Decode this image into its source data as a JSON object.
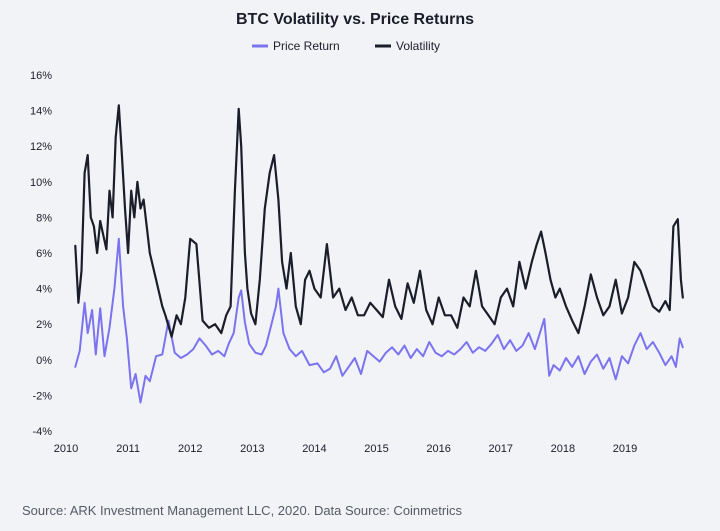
{
  "chart_data": {
    "type": "line",
    "title": "BTC Volatility vs. Price Returns",
    "xlabel": "",
    "ylabel": "",
    "ylim": [
      -4,
      16
    ],
    "xlim": [
      2010,
      2019.95
    ],
    "y_ticks": [
      -4,
      -2,
      0,
      2,
      4,
      6,
      8,
      10,
      12,
      14,
      16
    ],
    "y_tick_labels": [
      "-4%",
      "-2%",
      "0%",
      "2%",
      "4%",
      "6%",
      "8%",
      "10%",
      "12%",
      "14%",
      "16%"
    ],
    "x_ticks": [
      2010,
      2011,
      2012,
      2013,
      2014,
      2015,
      2016,
      2017,
      2018,
      2019
    ],
    "x_tick_labels": [
      "2010",
      "2011",
      "2012",
      "2013",
      "2014",
      "2015",
      "2016",
      "2017",
      "2018",
      "2019"
    ],
    "grid": false,
    "legend_position": "top",
    "source": "Source: ARK Investment Management LLC, 2020. Data Source: Coinmetrics",
    "series": [
      {
        "name": "Price Return",
        "color": "#7b73f0",
        "x": [
          2010.15,
          2010.22,
          2010.3,
          2010.35,
          2010.42,
          2010.48,
          2010.55,
          2010.62,
          2010.7,
          2010.78,
          2010.85,
          2010.92,
          2010.98,
          2011.05,
          2011.12,
          2011.2,
          2011.28,
          2011.35,
          2011.45,
          2011.55,
          2011.65,
          2011.75,
          2011.85,
          2011.95,
          2012.05,
          2012.15,
          2012.25,
          2012.35,
          2012.45,
          2012.55,
          2012.62,
          2012.7,
          2012.78,
          2012.82,
          2012.88,
          2012.95,
          2013.05,
          2013.15,
          2013.22,
          2013.3,
          2013.38,
          2013.42,
          2013.5,
          2013.6,
          2013.7,
          2013.8,
          2013.92,
          2014.05,
          2014.15,
          2014.25,
          2014.35,
          2014.45,
          2014.55,
          2014.65,
          2014.75,
          2014.85,
          2014.95,
          2015.05,
          2015.15,
          2015.25,
          2015.35,
          2015.45,
          2015.55,
          2015.65,
          2015.75,
          2015.85,
          2015.95,
          2016.05,
          2016.15,
          2016.25,
          2016.35,
          2016.45,
          2016.55,
          2016.65,
          2016.75,
          2016.85,
          2016.95,
          2017.05,
          2017.15,
          2017.25,
          2017.35,
          2017.45,
          2017.55,
          2017.62,
          2017.7,
          2017.78,
          2017.85,
          2017.95,
          2018.05,
          2018.15,
          2018.25,
          2018.35,
          2018.45,
          2018.55,
          2018.65,
          2018.75,
          2018.85,
          2018.95,
          2019.05,
          2019.15,
          2019.25,
          2019.35,
          2019.45,
          2019.55,
          2019.65,
          2019.75,
          2019.82,
          2019.88,
          2019.93
        ],
        "values": [
          -0.4,
          0.5,
          3.2,
          1.5,
          2.8,
          0.3,
          2.9,
          0.2,
          1.8,
          4.0,
          6.8,
          3.0,
          1.2,
          -1.6,
          -0.8,
          -2.4,
          -0.9,
          -1.2,
          0.2,
          0.3,
          2.2,
          0.4,
          0.1,
          0.3,
          0.6,
          1.2,
          0.8,
          0.3,
          0.5,
          0.2,
          0.9,
          1.5,
          3.5,
          3.9,
          2.1,
          0.9,
          0.4,
          0.3,
          0.8,
          1.9,
          3.0,
          4.0,
          1.5,
          0.6,
          0.2,
          0.5,
          -0.3,
          -0.2,
          -0.7,
          -0.5,
          0.2,
          -0.9,
          -0.4,
          0.1,
          -0.8,
          0.5,
          0.2,
          -0.1,
          0.4,
          0.7,
          0.3,
          0.8,
          0.1,
          0.6,
          0.2,
          1.0,
          0.4,
          0.2,
          0.5,
          0.3,
          0.6,
          1.0,
          0.4,
          0.7,
          0.5,
          0.9,
          1.4,
          0.6,
          1.1,
          0.5,
          0.8,
          1.5,
          0.6,
          1.4,
          2.3,
          -0.9,
          -0.3,
          -0.6,
          0.1,
          -0.4,
          0.2,
          -0.8,
          -0.1,
          0.3,
          -0.5,
          0.1,
          -1.1,
          0.2,
          -0.2,
          0.8,
          1.5,
          0.6,
          1.0,
          0.4,
          -0.3,
          0.2,
          -0.4,
          1.2,
          0.7
        ]
      },
      {
        "name": "Volatility",
        "color": "#1b1d2a",
        "x": [
          2010.15,
          2010.2,
          2010.25,
          2010.3,
          2010.35,
          2010.4,
          2010.45,
          2010.5,
          2010.55,
          2010.6,
          2010.65,
          2010.7,
          2010.75,
          2010.8,
          2010.85,
          2010.9,
          2010.95,
          2011.0,
          2011.05,
          2011.1,
          2011.15,
          2011.2,
          2011.25,
          2011.3,
          2011.35,
          2011.45,
          2011.55,
          2011.6,
          2011.7,
          2011.78,
          2011.85,
          2011.92,
          2012.0,
          2012.1,
          2012.2,
          2012.3,
          2012.4,
          2012.5,
          2012.58,
          2012.65,
          2012.72,
          2012.78,
          2012.82,
          2012.88,
          2012.92,
          2012.98,
          2013.05,
          2013.12,
          2013.2,
          2013.28,
          2013.35,
          2013.42,
          2013.48,
          2013.55,
          2013.62,
          2013.7,
          2013.78,
          2013.85,
          2013.92,
          2014.0,
          2014.1,
          2014.2,
          2014.3,
          2014.4,
          2014.5,
          2014.6,
          2014.7,
          2014.8,
          2014.9,
          2015.0,
          2015.1,
          2015.2,
          2015.3,
          2015.4,
          2015.5,
          2015.6,
          2015.7,
          2015.8,
          2015.9,
          2016.0,
          2016.1,
          2016.2,
          2016.3,
          2016.4,
          2016.5,
          2016.6,
          2016.7,
          2016.8,
          2016.9,
          2017.0,
          2017.1,
          2017.2,
          2017.3,
          2017.4,
          2017.5,
          2017.58,
          2017.65,
          2017.72,
          2017.8,
          2017.88,
          2017.95,
          2018.05,
          2018.15,
          2018.25,
          2018.35,
          2018.45,
          2018.55,
          2018.65,
          2018.75,
          2018.85,
          2018.95,
          2019.05,
          2019.15,
          2019.25,
          2019.35,
          2019.45,
          2019.55,
          2019.65,
          2019.72,
          2019.78,
          2019.85,
          2019.9,
          2019.93
        ],
        "values": [
          6.4,
          3.2,
          5.0,
          10.5,
          11.5,
          8.0,
          7.5,
          6.0,
          7.8,
          7.0,
          6.2,
          9.5,
          8.0,
          12.5,
          14.3,
          11.5,
          8.5,
          6.0,
          9.5,
          8.0,
          10.0,
          8.5,
          9.0,
          7.5,
          6.0,
          4.5,
          3.0,
          2.5,
          1.3,
          2.5,
          2.0,
          3.5,
          6.8,
          6.5,
          2.2,
          1.8,
          2.0,
          1.5,
          2.5,
          3.0,
          9.5,
          14.1,
          12.0,
          6.0,
          4.0,
          2.6,
          2.0,
          4.5,
          8.5,
          10.5,
          11.5,
          9.0,
          5.5,
          4.0,
          6.0,
          3.0,
          2.0,
          4.5,
          5.0,
          4.0,
          3.5,
          6.5,
          3.5,
          4.0,
          2.8,
          3.5,
          2.5,
          2.5,
          3.2,
          2.8,
          2.4,
          4.5,
          3.0,
          2.3,
          4.3,
          3.2,
          5.0,
          2.8,
          2.0,
          3.5,
          2.5,
          2.5,
          1.8,
          3.5,
          3.0,
          5.0,
          3.0,
          2.5,
          2.0,
          3.5,
          4.0,
          3.0,
          5.5,
          4.0,
          5.5,
          6.5,
          7.2,
          6.0,
          4.5,
          3.5,
          4.0,
          3.0,
          2.2,
          1.5,
          3.0,
          4.8,
          3.5,
          2.5,
          3.0,
          4.5,
          2.6,
          3.5,
          5.5,
          5.0,
          4.0,
          3.0,
          2.7,
          3.3,
          2.8,
          7.5,
          7.9,
          4.5,
          3.5
        ]
      }
    ]
  }
}
